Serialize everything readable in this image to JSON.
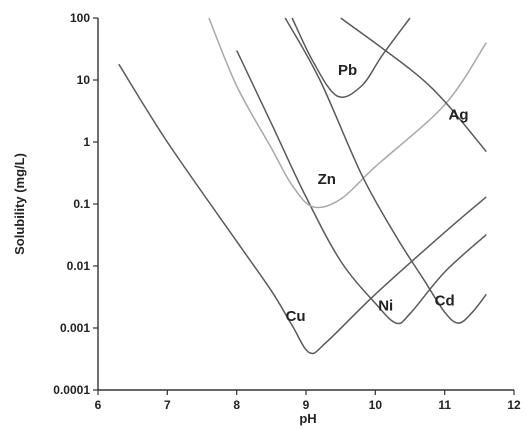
{
  "chart_data": {
    "type": "line",
    "xlabel": "pH",
    "ylabel": "Solubility (mg/L)",
    "y_scale": "log",
    "xlim": [
      6,
      12
    ],
    "ylim": [
      0.0001,
      100
    ],
    "x_ticks": [
      "6",
      "7",
      "8",
      "9",
      "10",
      "11",
      "12"
    ],
    "y_ticks": [
      "100",
      "10",
      "1",
      "0.1",
      "0.01",
      "0.001",
      "0.0001"
    ],
    "grid": false,
    "legend": "none",
    "series": [
      {
        "name": "Cu",
        "color": "#5a5a5a",
        "points": [
          [
            6.3,
            18
          ],
          [
            7.0,
            1.0
          ],
          [
            8.0,
            0.025
          ],
          [
            8.5,
            0.004
          ],
          [
            8.8,
            0.0011
          ],
          [
            9.05,
            0.0004
          ],
          [
            9.3,
            0.0006
          ],
          [
            10.0,
            0.0035
          ],
          [
            11.0,
            0.035
          ],
          [
            11.6,
            0.13
          ]
        ]
      },
      {
        "name": "Ni",
        "color": "#5a5a5a",
        "points": [
          [
            8.0,
            30
          ],
          [
            8.5,
            2.0
          ],
          [
            9.0,
            0.13
          ],
          [
            9.5,
            0.012
          ],
          [
            10.0,
            0.0025
          ],
          [
            10.3,
            0.0012
          ],
          [
            10.5,
            0.0017
          ],
          [
            11.0,
            0.008
          ],
          [
            11.6,
            0.032
          ]
        ]
      },
      {
        "name": "Zn",
        "color": "#a8a8a8",
        "points": [
          [
            7.6,
            100
          ],
          [
            8.0,
            8.0
          ],
          [
            8.5,
            0.8
          ],
          [
            8.8,
            0.2
          ],
          [
            9.1,
            0.09
          ],
          [
            9.5,
            0.12
          ],
          [
            10.0,
            0.4
          ],
          [
            11.0,
            4.0
          ],
          [
            11.6,
            40
          ]
        ]
      },
      {
        "name": "Pb",
        "color": "#5a5a5a",
        "points": [
          [
            8.8,
            100
          ],
          [
            9.1,
            20
          ],
          [
            9.45,
            5.5
          ],
          [
            9.8,
            8.0
          ],
          [
            10.1,
            25
          ],
          [
            10.5,
            100
          ]
        ]
      },
      {
        "name": "Cd",
        "color": "#5a5a5a",
        "points": [
          [
            8.7,
            100
          ],
          [
            9.2,
            10
          ],
          [
            9.8,
            0.3
          ],
          [
            10.3,
            0.03
          ],
          [
            10.7,
            0.006
          ],
          [
            11.0,
            0.0018
          ],
          [
            11.2,
            0.0012
          ],
          [
            11.4,
            0.0018
          ],
          [
            11.6,
            0.0035
          ]
        ]
      },
      {
        "name": "Ag",
        "color": "#5a5a5a",
        "points": [
          [
            9.5,
            100
          ],
          [
            10.5,
            15
          ],
          [
            11.0,
            4.5
          ],
          [
            11.6,
            0.7
          ]
        ]
      }
    ],
    "labels": [
      {
        "text": "Pb",
        "x": 9.6,
        "y": 12
      },
      {
        "text": "Ag",
        "x": 11.2,
        "y": 2.3
      },
      {
        "text": "Zn",
        "x": 9.3,
        "y": 0.21
      },
      {
        "text": "Cu",
        "x": 8.85,
        "y": 0.0013
      },
      {
        "text": "Ni",
        "x": 10.15,
        "y": 0.0019
      },
      {
        "text": "Cd",
        "x": 11.0,
        "y": 0.0023
      }
    ]
  }
}
